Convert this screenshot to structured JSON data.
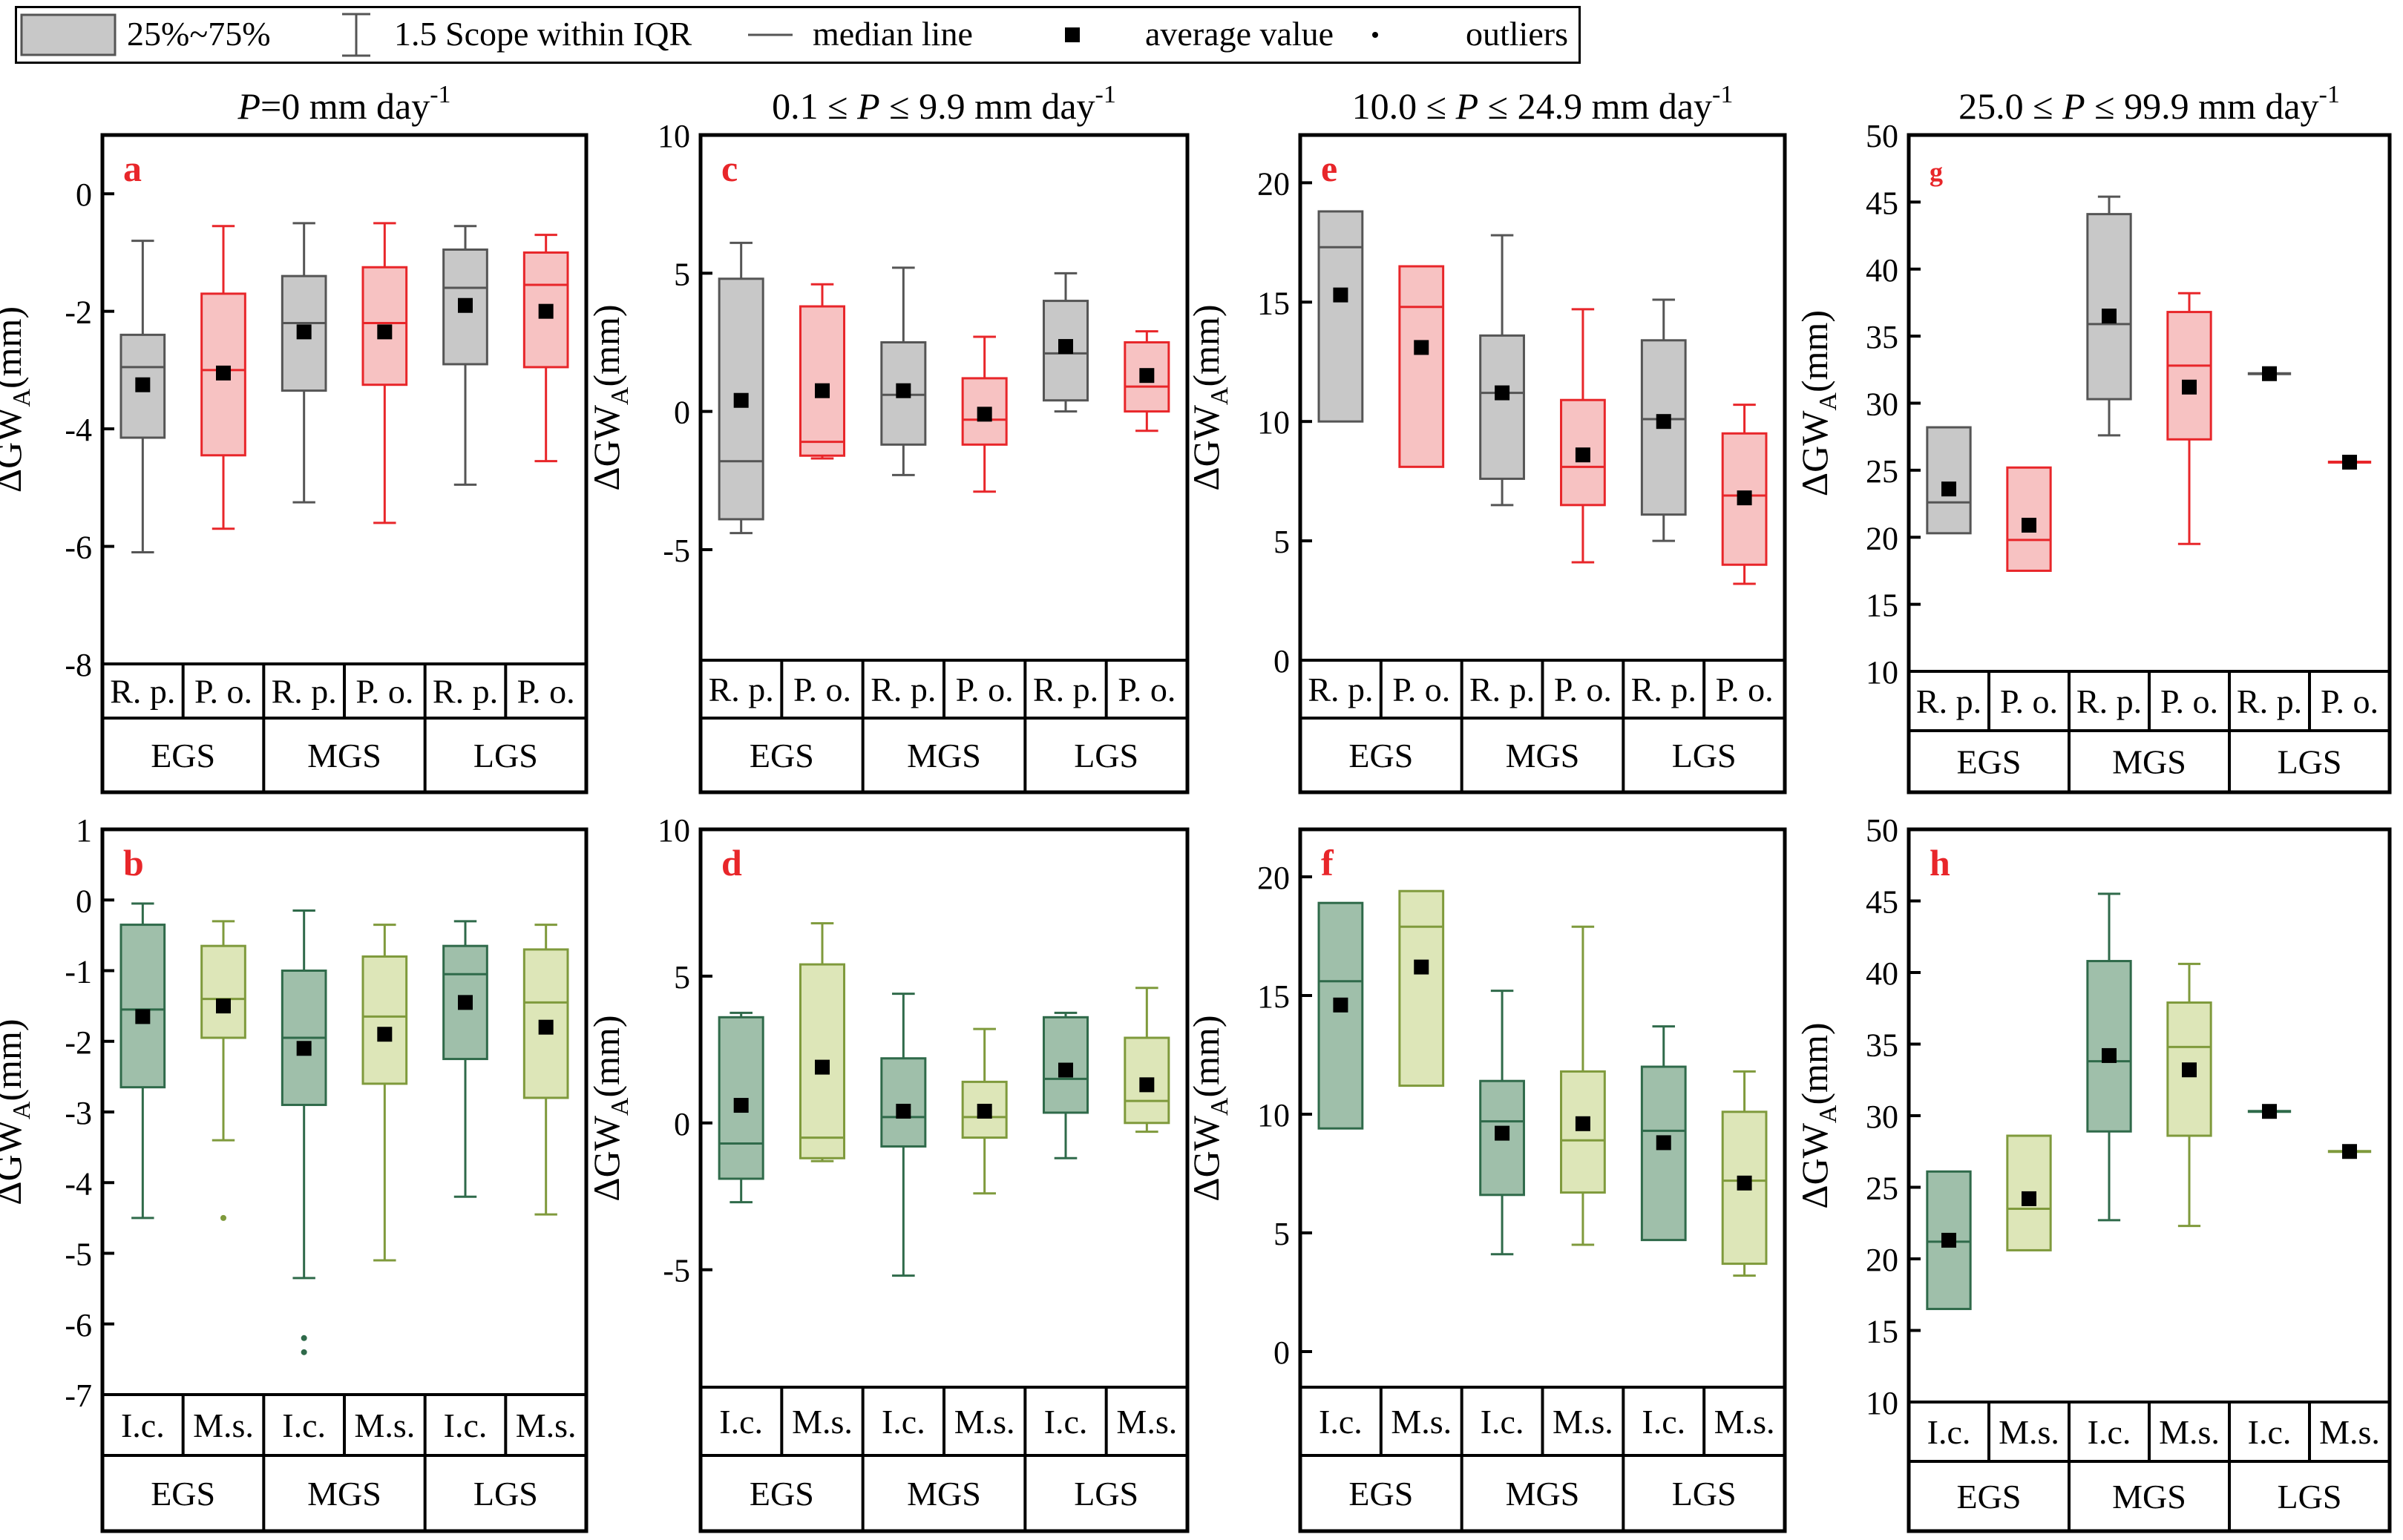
{
  "legend": {
    "box_label": "25%~75%",
    "whisker_label": "1.5 Scope within IQR",
    "median_label": "median line",
    "average_label": "average value",
    "outlier_label": "outliers"
  },
  "colors": {
    "gray_fill": "#c8c8c8",
    "gray_line": "#555555",
    "red_fill": "#f7c2c2",
    "red_line": "#e8262a",
    "teal_fill": "#9fbfaa",
    "teal_line": "#2f6a4a",
    "olive_fill": "#dde6b8",
    "olive_line": "#7f9a3c",
    "label_red": "#e8262a"
  },
  "ylabel_base": "ΔGW",
  "ylabel_sub": "A",
  "ylabel_unit": "(mm)",
  "columns": [
    {
      "pre": "P",
      "mid": "=0 mm day",
      "sup": "-1"
    },
    {
      "pre": "0.1 ≤ ",
      "mid": "P ≤ 9.9 mm day",
      "sup": "-1"
    },
    {
      "pre": "10.0 ≤ ",
      "mid": "P ≤ 24.9 mm day",
      "sup": "-1"
    },
    {
      "pre": "25.0  ≤ ",
      "mid": "P ≤ 99.9 mm day",
      "sup": "-1"
    }
  ],
  "chart_data": [
    {
      "type": "box",
      "label": "a",
      "row": 0,
      "col": 0,
      "ylim": [
        -8,
        1
      ],
      "yticks": [
        0,
        -2,
        -4,
        -6,
        -8
      ],
      "groups": [
        "EGS",
        "MGS",
        "LGS"
      ],
      "categories": [
        "R. p.",
        "P. o."
      ],
      "palette": [
        "gray",
        "red"
      ],
      "boxes": [
        {
          "group": "EGS",
          "category": "R. p.",
          "whisker_low": -6.1,
          "q1": -4.15,
          "median": -2.95,
          "q3": -2.4,
          "whisker_high": -0.8,
          "mean": -3.25,
          "outliers": []
        },
        {
          "group": "EGS",
          "category": "P. o.",
          "whisker_low": -5.7,
          "q1": -4.45,
          "median": -3.0,
          "q3": -1.7,
          "whisker_high": -0.55,
          "mean": -3.05,
          "outliers": []
        },
        {
          "group": "MGS",
          "category": "R. p.",
          "whisker_low": -5.25,
          "q1": -3.35,
          "median": -2.2,
          "q3": -1.4,
          "whisker_high": -0.5,
          "mean": -2.35,
          "outliers": []
        },
        {
          "group": "MGS",
          "category": "P. o.",
          "whisker_low": -5.6,
          "q1": -3.25,
          "median": -2.2,
          "q3": -1.25,
          "whisker_high": -0.5,
          "mean": -2.35,
          "outliers": []
        },
        {
          "group": "LGS",
          "category": "R. p.",
          "whisker_low": -4.95,
          "q1": -2.9,
          "median": -1.6,
          "q3": -0.95,
          "whisker_high": -0.55,
          "mean": -1.9,
          "outliers": []
        },
        {
          "group": "LGS",
          "category": "P. o.",
          "whisker_low": -4.55,
          "q1": -2.95,
          "median": -1.55,
          "q3": -1.0,
          "whisker_high": -0.7,
          "mean": -2.0,
          "outliers": []
        }
      ]
    },
    {
      "type": "box",
      "label": "b",
      "row": 1,
      "col": 0,
      "ylim": [
        -7,
        1
      ],
      "yticks": [
        1,
        0,
        -1,
        -2,
        -3,
        -4,
        -5,
        -6,
        -7
      ],
      "groups": [
        "EGS",
        "MGS",
        "LGS"
      ],
      "categories": [
        "I.c.",
        "M.s."
      ],
      "palette": [
        "teal",
        "olive"
      ],
      "boxes": [
        {
          "group": "EGS",
          "category": "I.c.",
          "whisker_low": -4.5,
          "q1": -2.65,
          "median": -1.55,
          "q3": -0.35,
          "whisker_high": -0.05,
          "mean": -1.65,
          "outliers": []
        },
        {
          "group": "EGS",
          "category": "M.s.",
          "whisker_low": -3.4,
          "q1": -1.95,
          "median": -1.4,
          "q3": -0.65,
          "whisker_high": -0.3,
          "mean": -1.5,
          "outliers": [
            -4.5
          ]
        },
        {
          "group": "MGS",
          "category": "I.c.",
          "whisker_low": -5.35,
          "q1": -2.9,
          "median": -1.95,
          "q3": -1.0,
          "whisker_high": -0.15,
          "mean": -2.1,
          "outliers": [
            -6.2,
            -6.4
          ]
        },
        {
          "group": "MGS",
          "category": "M.s.",
          "whisker_low": -5.1,
          "q1": -2.6,
          "median": -1.65,
          "q3": -0.8,
          "whisker_high": -0.35,
          "mean": -1.9,
          "outliers": []
        },
        {
          "group": "LGS",
          "category": "I.c.",
          "whisker_low": -4.2,
          "q1": -2.25,
          "median": -1.05,
          "q3": -0.65,
          "whisker_high": -0.3,
          "mean": -1.45,
          "outliers": []
        },
        {
          "group": "LGS",
          "category": "M.s.",
          "whisker_low": -4.45,
          "q1": -2.8,
          "median": -1.45,
          "q3": -0.7,
          "whisker_high": -0.35,
          "mean": -1.8,
          "outliers": []
        }
      ]
    },
    {
      "type": "box",
      "label": "c",
      "row": 0,
      "col": 1,
      "ylim": [
        -9,
        10
      ],
      "yticks": [
        10,
        5,
        0,
        -5
      ],
      "groups": [
        "EGS",
        "MGS",
        "LGS"
      ],
      "categories": [
        "R. p.",
        "P. o."
      ],
      "palette": [
        "gray",
        "red"
      ],
      "boxes": [
        {
          "group": "EGS",
          "category": "R. p.",
          "whisker_low": -4.4,
          "q1": -3.9,
          "median": -1.8,
          "q3": 4.8,
          "whisker_high": 6.1,
          "mean": 0.4,
          "outliers": []
        },
        {
          "group": "EGS",
          "category": "P. o.",
          "whisker_low": -1.7,
          "q1": -1.6,
          "median": -1.1,
          "q3": 3.8,
          "whisker_high": 4.6,
          "mean": 0.75,
          "outliers": []
        },
        {
          "group": "MGS",
          "category": "R. p.",
          "whisker_low": -2.3,
          "q1": -1.2,
          "median": 0.6,
          "q3": 2.5,
          "whisker_high": 5.2,
          "mean": 0.75,
          "outliers": []
        },
        {
          "group": "MGS",
          "category": "P. o.",
          "whisker_low": -2.9,
          "q1": -1.2,
          "median": -0.3,
          "q3": 1.2,
          "whisker_high": 2.7,
          "mean": -0.1,
          "outliers": []
        },
        {
          "group": "LGS",
          "category": "R. p.",
          "whisker_low": 0.0,
          "q1": 0.4,
          "median": 2.1,
          "q3": 4.0,
          "whisker_high": 5.0,
          "mean": 2.35,
          "outliers": []
        },
        {
          "group": "LGS",
          "category": "P. o.",
          "whisker_low": -0.7,
          "q1": 0.0,
          "median": 0.9,
          "q3": 2.5,
          "whisker_high": 2.9,
          "mean": 1.3,
          "outliers": []
        }
      ]
    },
    {
      "type": "box",
      "label": "d",
      "row": 1,
      "col": 1,
      "ylim": [
        -9,
        10
      ],
      "yticks": [
        10,
        5,
        0,
        -5
      ],
      "groups": [
        "EGS",
        "MGS",
        "LGS"
      ],
      "categories": [
        "I.c.",
        "M.s."
      ],
      "palette": [
        "teal",
        "olive"
      ],
      "boxes": [
        {
          "group": "EGS",
          "category": "I.c.",
          "whisker_low": -2.7,
          "q1": -1.9,
          "median": -0.7,
          "q3": 3.6,
          "whisker_high": 3.75,
          "mean": 0.6,
          "outliers": []
        },
        {
          "group": "EGS",
          "category": "M.s.",
          "whisker_low": -1.3,
          "q1": -1.2,
          "median": -0.5,
          "q3": 5.4,
          "whisker_high": 6.8,
          "mean": 1.9,
          "outliers": []
        },
        {
          "group": "MGS",
          "category": "I.c.",
          "whisker_low": -5.2,
          "q1": -0.8,
          "median": 0.2,
          "q3": 2.2,
          "whisker_high": 4.4,
          "mean": 0.4,
          "outliers": []
        },
        {
          "group": "MGS",
          "category": "M.s.",
          "whisker_low": -2.4,
          "q1": -0.5,
          "median": 0.2,
          "q3": 1.4,
          "whisker_high": 3.2,
          "mean": 0.4,
          "outliers": []
        },
        {
          "group": "LGS",
          "category": "I.c.",
          "whisker_low": -1.2,
          "q1": 0.35,
          "median": 1.5,
          "q3": 3.6,
          "whisker_high": 3.75,
          "mean": 1.8,
          "outliers": []
        },
        {
          "group": "LGS",
          "category": "M.s.",
          "whisker_low": -0.3,
          "q1": 0.0,
          "median": 0.75,
          "q3": 2.9,
          "whisker_high": 4.6,
          "mean": 1.3,
          "outliers": []
        }
      ]
    },
    {
      "type": "box",
      "label": "e",
      "row": 0,
      "col": 2,
      "ylim": [
        0,
        22
      ],
      "yticks": [
        20,
        15,
        10,
        5,
        0
      ],
      "groups": [
        "EGS",
        "MGS",
        "LGS"
      ],
      "categories": [
        "R. p.",
        "P. o."
      ],
      "palette": [
        "gray",
        "red"
      ],
      "boxes": [
        {
          "group": "EGS",
          "category": "R. p.",
          "whisker_low": 10.0,
          "q1": 10.0,
          "median": 17.3,
          "q3": 18.8,
          "whisker_high": 18.8,
          "mean": 15.3,
          "outliers": []
        },
        {
          "group": "EGS",
          "category": "P. o.",
          "whisker_low": 8.1,
          "q1": 8.1,
          "median": 14.8,
          "q3": 16.5,
          "whisker_high": 16.5,
          "mean": 13.1,
          "outliers": []
        },
        {
          "group": "MGS",
          "category": "R. p.",
          "whisker_low": 6.5,
          "q1": 7.6,
          "median": 11.2,
          "q3": 13.6,
          "whisker_high": 17.8,
          "mean": 11.2,
          "outliers": []
        },
        {
          "group": "MGS",
          "category": "P. o.",
          "whisker_low": 4.1,
          "q1": 6.5,
          "median": 8.1,
          "q3": 10.9,
          "whisker_high": 14.7,
          "mean": 8.6,
          "outliers": []
        },
        {
          "group": "LGS",
          "category": "R. p.",
          "whisker_low": 5.0,
          "q1": 6.1,
          "median": 10.1,
          "q3": 13.4,
          "whisker_high": 15.1,
          "mean": 10.0,
          "outliers": []
        },
        {
          "group": "LGS",
          "category": "P. o.",
          "whisker_low": 3.2,
          "q1": 4.0,
          "median": 6.9,
          "q3": 9.5,
          "whisker_high": 10.7,
          "mean": 6.8,
          "outliers": []
        }
      ]
    },
    {
      "type": "box",
      "label": "f",
      "row": 1,
      "col": 2,
      "ylim": [
        -1.5,
        22
      ],
      "yticks": [
        20,
        15,
        10,
        5,
        0
      ],
      "groups": [
        "EGS",
        "MGS",
        "LGS"
      ],
      "categories": [
        "I.c.",
        "M.s."
      ],
      "palette": [
        "teal",
        "olive"
      ],
      "boxes": [
        {
          "group": "EGS",
          "category": "I.c.",
          "whisker_low": 9.4,
          "q1": 9.4,
          "median": 15.6,
          "q3": 18.9,
          "whisker_high": 18.9,
          "mean": 14.6,
          "outliers": []
        },
        {
          "group": "EGS",
          "category": "M.s.",
          "whisker_low": 11.2,
          "q1": 11.2,
          "median": 17.9,
          "q3": 19.4,
          "whisker_high": 19.4,
          "mean": 16.2,
          "outliers": []
        },
        {
          "group": "MGS",
          "category": "I.c.",
          "whisker_low": 4.1,
          "q1": 6.6,
          "median": 9.7,
          "q3": 11.4,
          "whisker_high": 15.2,
          "mean": 9.2,
          "outliers": []
        },
        {
          "group": "MGS",
          "category": "M.s.",
          "whisker_low": 4.5,
          "q1": 6.7,
          "median": 8.9,
          "q3": 11.8,
          "whisker_high": 17.9,
          "mean": 9.6,
          "outliers": []
        },
        {
          "group": "LGS",
          "category": "I.c.",
          "whisker_low": 4.7,
          "q1": 4.7,
          "median": 9.3,
          "q3": 12.0,
          "whisker_high": 13.7,
          "mean": 8.8,
          "outliers": []
        },
        {
          "group": "LGS",
          "category": "M.s.",
          "whisker_low": 3.2,
          "q1": 3.7,
          "median": 7.2,
          "q3": 10.1,
          "whisker_high": 11.8,
          "mean": 7.1,
          "outliers": []
        }
      ]
    },
    {
      "type": "box",
      "label": "g",
      "row": 0,
      "col": 3,
      "ylim": [
        10,
        50
      ],
      "yticks": [
        50,
        45,
        40,
        35,
        30,
        25,
        20,
        15,
        10
      ],
      "groups": [
        "EGS",
        "MGS",
        "LGS"
      ],
      "categories": [
        "R. p.",
        "P. o."
      ],
      "palette": [
        "gray",
        "red"
      ],
      "boxes": [
        {
          "group": "EGS",
          "category": "R. p.",
          "whisker_low": 20.3,
          "q1": 20.3,
          "median": 22.6,
          "q3": 28.2,
          "whisker_high": 28.2,
          "mean": 23.6,
          "outliers": []
        },
        {
          "group": "EGS",
          "category": "P. o.",
          "whisker_low": 17.5,
          "q1": 17.5,
          "median": 19.8,
          "q3": 25.2,
          "whisker_high": 25.2,
          "mean": 20.9,
          "outliers": []
        },
        {
          "group": "MGS",
          "category": "R. p.",
          "whisker_low": 27.6,
          "q1": 30.3,
          "median": 35.9,
          "q3": 44.1,
          "whisker_high": 45.4,
          "mean": 36.5,
          "outliers": []
        },
        {
          "group": "MGS",
          "category": "P. o.",
          "whisker_low": 19.5,
          "q1": 27.3,
          "median": 32.8,
          "q3": 36.8,
          "whisker_high": 38.2,
          "mean": 31.2,
          "outliers": []
        },
        {
          "group": "LGS",
          "category": "R. p.",
          "whisker_low": 32.2,
          "q1": 32.2,
          "median": 32.2,
          "q3": 32.2,
          "whisker_high": 32.2,
          "mean": 32.2,
          "outliers": []
        },
        {
          "group": "LGS",
          "category": "P. o.",
          "whisker_low": 25.6,
          "q1": 25.6,
          "median": 25.6,
          "q3": 25.6,
          "whisker_high": 25.6,
          "mean": 25.6,
          "outliers": []
        }
      ]
    },
    {
      "type": "box",
      "label": "h",
      "row": 1,
      "col": 3,
      "ylim": [
        10,
        50
      ],
      "yticks": [
        50,
        45,
        40,
        35,
        30,
        25,
        20,
        15,
        10
      ],
      "groups": [
        "EGS",
        "MGS",
        "LGS"
      ],
      "categories": [
        "I.c.",
        "M.s."
      ],
      "palette": [
        "teal",
        "olive"
      ],
      "boxes": [
        {
          "group": "EGS",
          "category": "I.c.",
          "whisker_low": 16.5,
          "q1": 16.5,
          "median": 21.2,
          "q3": 26.1,
          "whisker_high": 26.1,
          "mean": 21.3,
          "outliers": []
        },
        {
          "group": "EGS",
          "category": "M.s.",
          "whisker_low": 20.6,
          "q1": 20.6,
          "median": 23.5,
          "q3": 28.6,
          "whisker_high": 28.6,
          "mean": 24.2,
          "outliers": []
        },
        {
          "group": "MGS",
          "category": "I.c.",
          "whisker_low": 22.7,
          "q1": 28.9,
          "median": 33.8,
          "q3": 40.8,
          "whisker_high": 45.5,
          "mean": 34.2,
          "outliers": []
        },
        {
          "group": "MGS",
          "category": "M.s.",
          "whisker_low": 22.3,
          "q1": 28.6,
          "median": 34.8,
          "q3": 37.9,
          "whisker_high": 40.6,
          "mean": 33.2,
          "outliers": []
        },
        {
          "group": "LGS",
          "category": "I.c.",
          "whisker_low": 30.3,
          "q1": 30.3,
          "median": 30.3,
          "q3": 30.3,
          "whisker_high": 30.3,
          "mean": 30.3,
          "outliers": []
        },
        {
          "group": "LGS",
          "category": "M.s.",
          "whisker_low": 27.5,
          "q1": 27.5,
          "median": 27.5,
          "q3": 27.5,
          "whisker_high": 27.5,
          "mean": 27.5,
          "outliers": []
        }
      ]
    }
  ]
}
